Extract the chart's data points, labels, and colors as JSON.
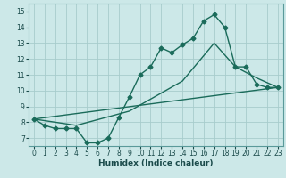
{
  "xlabel": "Humidex (Indice chaleur)",
  "bg_color": "#cce8e8",
  "line_color": "#1a6b5a",
  "grid_color": "#a8cccc",
  "xlim": [
    -0.5,
    23.5
  ],
  "ylim": [
    6.5,
    15.5
  ],
  "xticks": [
    0,
    1,
    2,
    3,
    4,
    5,
    6,
    7,
    8,
    9,
    10,
    11,
    12,
    13,
    14,
    15,
    16,
    17,
    18,
    19,
    20,
    21,
    22,
    23
  ],
  "yticks": [
    7,
    8,
    9,
    10,
    11,
    12,
    13,
    14,
    15
  ],
  "line1_x": [
    0,
    1,
    2,
    3,
    4,
    5,
    6,
    7,
    8,
    9,
    10,
    11,
    12,
    13,
    14,
    15,
    16,
    17,
    18,
    19,
    20,
    21,
    22,
    23
  ],
  "line1_y": [
    8.2,
    7.8,
    7.6,
    7.6,
    7.6,
    6.7,
    6.7,
    7.0,
    8.3,
    9.6,
    11.0,
    11.5,
    12.7,
    12.4,
    12.9,
    13.3,
    14.4,
    14.8,
    14.0,
    11.5,
    11.5,
    10.4,
    10.2,
    10.2
  ],
  "line2_x": [
    0,
    23
  ],
  "line2_y": [
    8.2,
    10.2
  ],
  "line3_x": [
    0,
    4,
    9,
    14,
    17,
    19,
    21,
    23
  ],
  "line3_y": [
    8.2,
    7.8,
    8.7,
    10.6,
    13.0,
    11.5,
    10.8,
    10.2
  ],
  "marker": "D",
  "marker_size": 2.5,
  "line_width": 1.0,
  "xlabel_fontsize": 6.5,
  "tick_fontsize": 5.5
}
